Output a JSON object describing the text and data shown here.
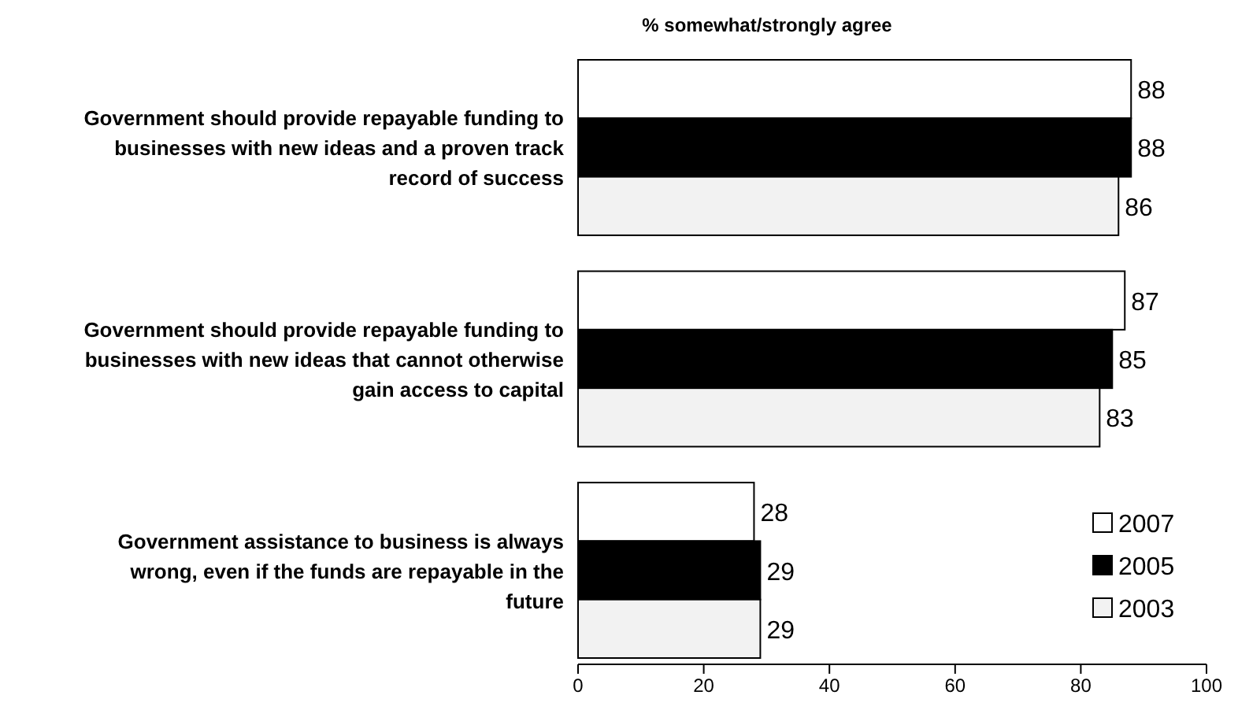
{
  "chart_data": {
    "type": "bar",
    "orientation": "horizontal",
    "title": "% somewhat/strongly agree",
    "categories": [
      "Government should provide repayable funding to businesses with new ideas and a proven track record of success",
      "Government should provide repayable funding to businesses with new ideas that cannot otherwise gain access to capital",
      "Government assistance to business is always wrong, even if the funds are repayable in the future"
    ],
    "series": [
      {
        "name": "2007",
        "color": "#ffffff",
        "values": [
          88,
          87,
          28
        ]
      },
      {
        "name": "2005",
        "color": "#000000",
        "values": [
          88,
          85,
          29
        ]
      },
      {
        "name": "2003",
        "color": "#f2f2f2",
        "values": [
          86,
          83,
          29
        ]
      }
    ],
    "xlim": [
      0,
      100
    ],
    "xticks": [
      0,
      20,
      40,
      60,
      80,
      100
    ],
    "data_labels": true,
    "legend": "bottom right",
    "grid": false
  }
}
